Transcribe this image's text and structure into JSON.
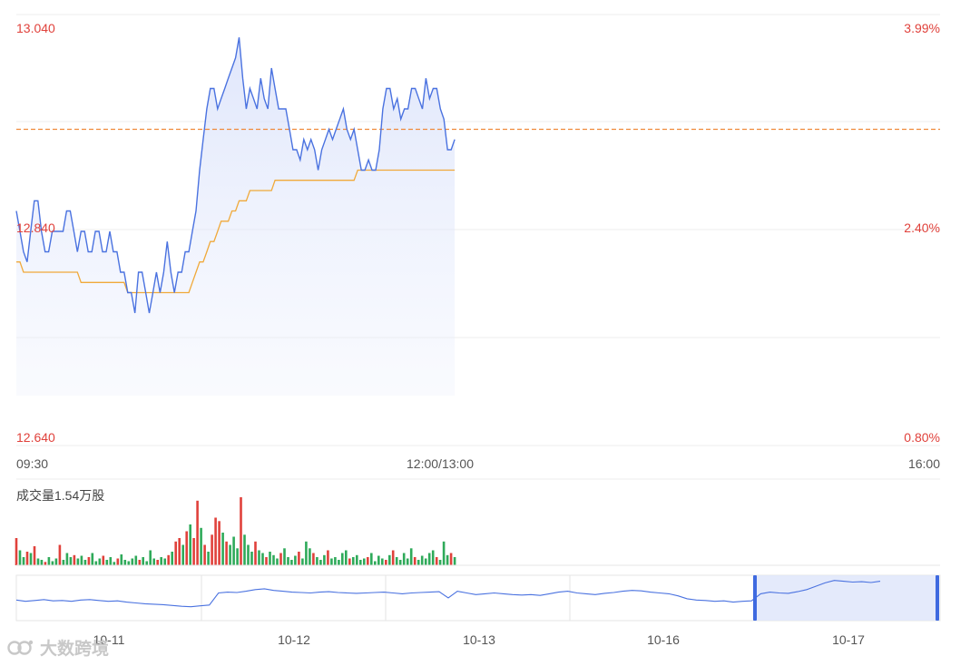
{
  "chart_data": {
    "type": "line",
    "session_axis": {
      "ticks": [
        "09:30",
        "12:00/13:00",
        "16:00"
      ]
    },
    "price_axis": {
      "ylim": [
        12.64,
        13.04
      ],
      "ticks": [
        "13.040",
        "12.840",
        "12.640"
      ]
    },
    "pct_axis": {
      "ticks": [
        "3.99%",
        "2.40%",
        "0.80%"
      ]
    },
    "reference_price": 12.94,
    "series": [
      {
        "values": [
          12.86,
          12.84,
          12.82,
          12.81,
          12.84,
          12.87,
          12.87,
          12.84,
          12.82,
          12.82,
          12.84,
          12.84,
          12.84,
          12.84,
          12.86,
          12.86,
          12.84,
          12.82,
          12.84,
          12.84,
          12.82,
          12.82,
          12.84,
          12.84,
          12.82,
          12.82,
          12.84,
          12.82,
          12.82,
          12.8,
          12.8,
          12.78,
          12.78,
          12.76,
          12.8,
          12.8,
          12.78,
          12.76,
          12.78,
          12.8,
          12.78,
          12.8,
          12.83,
          12.8,
          12.78,
          12.8,
          12.8,
          12.82,
          12.82,
          12.84,
          12.86,
          12.9,
          12.93,
          12.96,
          12.98,
          12.98,
          12.96,
          12.97,
          12.98,
          12.99,
          13.0,
          13.01,
          13.03,
          12.99,
          12.96,
          12.98,
          12.97,
          12.96,
          12.99,
          12.97,
          12.96,
          13.0,
          12.98,
          12.96,
          12.96,
          12.96,
          12.94,
          12.92,
          12.92,
          12.91,
          12.93,
          12.92,
          12.93,
          12.92,
          12.9,
          12.92,
          12.93,
          12.94,
          12.93,
          12.94,
          12.95,
          12.96,
          12.94,
          12.93,
          12.94,
          12.92,
          12.9,
          12.9,
          12.91,
          12.9,
          12.9,
          12.92,
          12.96,
          12.98,
          12.98,
          12.96,
          12.97,
          12.95,
          12.96,
          12.96,
          12.98,
          12.98,
          12.97,
          12.96,
          12.99,
          12.97,
          12.98,
          12.98,
          12.96,
          12.95,
          12.92,
          12.92,
          12.93
        ],
        "color": "#4a72e0"
      },
      {
        "values": [
          12.81,
          12.81,
          12.8,
          12.8,
          12.8,
          12.8,
          12.8,
          12.8,
          12.8,
          12.8,
          12.8,
          12.8,
          12.8,
          12.8,
          12.8,
          12.8,
          12.8,
          12.8,
          12.79,
          12.79,
          12.79,
          12.79,
          12.79,
          12.79,
          12.79,
          12.79,
          12.79,
          12.79,
          12.79,
          12.79,
          12.79,
          12.78,
          12.78,
          12.78,
          12.78,
          12.78,
          12.78,
          12.78,
          12.78,
          12.78,
          12.78,
          12.78,
          12.78,
          12.78,
          12.78,
          12.78,
          12.78,
          12.78,
          12.78,
          12.79,
          12.8,
          12.81,
          12.81,
          12.82,
          12.83,
          12.83,
          12.84,
          12.85,
          12.85,
          12.85,
          12.86,
          12.86,
          12.87,
          12.87,
          12.87,
          12.88,
          12.88,
          12.88,
          12.88,
          12.88,
          12.88,
          12.88,
          12.89,
          12.89,
          12.89,
          12.89,
          12.89,
          12.89,
          12.89,
          12.89,
          12.89,
          12.89,
          12.89,
          12.89,
          12.89,
          12.89,
          12.89,
          12.89,
          12.89,
          12.89,
          12.89,
          12.89,
          12.89,
          12.89,
          12.89,
          12.9,
          12.9,
          12.9,
          12.9,
          12.9,
          12.9,
          12.9,
          12.9,
          12.9,
          12.9,
          12.9,
          12.9,
          12.9,
          12.9,
          12.9,
          12.9,
          12.9,
          12.9,
          12.9,
          12.9,
          12.9,
          12.9,
          12.9,
          12.9,
          12.9,
          12.9,
          12.9,
          12.9
        ],
        "color": "#f0a93a"
      }
    ],
    "volume": {
      "label": "成交量1.54万股",
      "up_color": "#e0413b",
      "down_color": "#2faa5a",
      "bars": [
        {
          "v": 0.4,
          "up": true
        },
        {
          "v": 0.22,
          "up": false
        },
        {
          "v": 0.12,
          "up": false
        },
        {
          "v": 0.2,
          "up": true
        },
        {
          "v": 0.18,
          "up": false
        },
        {
          "v": 0.28,
          "up": true
        },
        {
          "v": 0.1,
          "up": false
        },
        {
          "v": 0.08,
          "up": false
        },
        {
          "v": 0.05,
          "up": true
        },
        {
          "v": 0.12,
          "up": false
        },
        {
          "v": 0.06,
          "up": false
        },
        {
          "v": 0.1,
          "up": false
        },
        {
          "v": 0.3,
          "up": true
        },
        {
          "v": 0.08,
          "up": false
        },
        {
          "v": 0.18,
          "up": false
        },
        {
          "v": 0.12,
          "up": false
        },
        {
          "v": 0.15,
          "up": true
        },
        {
          "v": 0.1,
          "up": false
        },
        {
          "v": 0.14,
          "up": false
        },
        {
          "v": 0.08,
          "up": false
        },
        {
          "v": 0.12,
          "up": true
        },
        {
          "v": 0.18,
          "up": false
        },
        {
          "v": 0.06,
          "up": false
        },
        {
          "v": 0.1,
          "up": false
        },
        {
          "v": 0.14,
          "up": true
        },
        {
          "v": 0.08,
          "up": false
        },
        {
          "v": 0.12,
          "up": false
        },
        {
          "v": 0.05,
          "up": false
        },
        {
          "v": 0.1,
          "up": true
        },
        {
          "v": 0.16,
          "up": false
        },
        {
          "v": 0.08,
          "up": false
        },
        {
          "v": 0.06,
          "up": false
        },
        {
          "v": 0.1,
          "up": false
        },
        {
          "v": 0.14,
          "up": false
        },
        {
          "v": 0.08,
          "up": true
        },
        {
          "v": 0.12,
          "up": false
        },
        {
          "v": 0.06,
          "up": false
        },
        {
          "v": 0.22,
          "up": false
        },
        {
          "v": 0.1,
          "up": false
        },
        {
          "v": 0.08,
          "up": true
        },
        {
          "v": 0.12,
          "up": false
        },
        {
          "v": 0.1,
          "up": false
        },
        {
          "v": 0.15,
          "up": true
        },
        {
          "v": 0.2,
          "up": false
        },
        {
          "v": 0.35,
          "up": true
        },
        {
          "v": 0.4,
          "up": true
        },
        {
          "v": 0.3,
          "up": false
        },
        {
          "v": 0.5,
          "up": true
        },
        {
          "v": 0.6,
          "up": false
        },
        {
          "v": 0.4,
          "up": true
        },
        {
          "v": 0.95,
          "up": true
        },
        {
          "v": 0.55,
          "up": false
        },
        {
          "v": 0.3,
          "up": true
        },
        {
          "v": 0.2,
          "up": false
        },
        {
          "v": 0.45,
          "up": true
        },
        {
          "v": 0.7,
          "up": true
        },
        {
          "v": 0.65,
          "up": true
        },
        {
          "v": 0.48,
          "up": false
        },
        {
          "v": 0.35,
          "up": true
        },
        {
          "v": 0.3,
          "up": false
        },
        {
          "v": 0.42,
          "up": false
        },
        {
          "v": 0.25,
          "up": false
        },
        {
          "v": 1.0,
          "up": true
        },
        {
          "v": 0.45,
          "up": false
        },
        {
          "v": 0.3,
          "up": false
        },
        {
          "v": 0.2,
          "up": false
        },
        {
          "v": 0.35,
          "up": true
        },
        {
          "v": 0.22,
          "up": false
        },
        {
          "v": 0.18,
          "up": false
        },
        {
          "v": 0.12,
          "up": true
        },
        {
          "v": 0.2,
          "up": false
        },
        {
          "v": 0.15,
          "up": false
        },
        {
          "v": 0.1,
          "up": false
        },
        {
          "v": 0.18,
          "up": true
        },
        {
          "v": 0.25,
          "up": false
        },
        {
          "v": 0.12,
          "up": false
        },
        {
          "v": 0.08,
          "up": false
        },
        {
          "v": 0.14,
          "up": false
        },
        {
          "v": 0.2,
          "up": true
        },
        {
          "v": 0.1,
          "up": false
        },
        {
          "v": 0.35,
          "up": false
        },
        {
          "v": 0.25,
          "up": false
        },
        {
          "v": 0.18,
          "up": true
        },
        {
          "v": 0.12,
          "up": false
        },
        {
          "v": 0.08,
          "up": false
        },
        {
          "v": 0.15,
          "up": false
        },
        {
          "v": 0.22,
          "up": true
        },
        {
          "v": 0.1,
          "up": false
        },
        {
          "v": 0.12,
          "up": false
        },
        {
          "v": 0.08,
          "up": false
        },
        {
          "v": 0.18,
          "up": false
        },
        {
          "v": 0.22,
          "up": false
        },
        {
          "v": 0.1,
          "up": true
        },
        {
          "v": 0.12,
          "up": false
        },
        {
          "v": 0.15,
          "up": false
        },
        {
          "v": 0.08,
          "up": false
        },
        {
          "v": 0.1,
          "up": false
        },
        {
          "v": 0.12,
          "up": true
        },
        {
          "v": 0.18,
          "up": false
        },
        {
          "v": 0.06,
          "up": false
        },
        {
          "v": 0.14,
          "up": false
        },
        {
          "v": 0.1,
          "up": false
        },
        {
          "v": 0.08,
          "up": true
        },
        {
          "v": 0.15,
          "up": false
        },
        {
          "v": 0.22,
          "up": true
        },
        {
          "v": 0.12,
          "up": false
        },
        {
          "v": 0.08,
          "up": false
        },
        {
          "v": 0.18,
          "up": false
        },
        {
          "v": 0.1,
          "up": false
        },
        {
          "v": 0.25,
          "up": false
        },
        {
          "v": 0.12,
          "up": true
        },
        {
          "v": 0.08,
          "up": false
        },
        {
          "v": 0.14,
          "up": false
        },
        {
          "v": 0.1,
          "up": false
        },
        {
          "v": 0.18,
          "up": false
        },
        {
          "v": 0.22,
          "up": false
        },
        {
          "v": 0.12,
          "up": true
        },
        {
          "v": 0.08,
          "up": false
        },
        {
          "v": 0.35,
          "up": false
        },
        {
          "v": 0.15,
          "up": false
        },
        {
          "v": 0.18,
          "up": true
        },
        {
          "v": 0.12,
          "up": false
        }
      ]
    },
    "navigator": {
      "dates": [
        "10-11",
        "10-12",
        "10-13",
        "10-16",
        "10-17"
      ],
      "values": [
        0.45,
        0.42,
        0.44,
        0.46,
        0.43,
        0.44,
        0.42,
        0.45,
        0.46,
        0.44,
        0.42,
        0.43,
        0.4,
        0.38,
        0.36,
        0.35,
        0.34,
        0.32,
        0.3,
        0.29,
        0.31,
        0.33,
        0.62,
        0.64,
        0.63,
        0.66,
        0.7,
        0.72,
        0.68,
        0.66,
        0.64,
        0.63,
        0.62,
        0.64,
        0.65,
        0.63,
        0.62,
        0.61,
        0.62,
        0.63,
        0.64,
        0.62,
        0.6,
        0.62,
        0.63,
        0.64,
        0.65,
        0.5,
        0.66,
        0.62,
        0.58,
        0.6,
        0.62,
        0.6,
        0.58,
        0.57,
        0.58,
        0.56,
        0.6,
        0.64,
        0.66,
        0.62,
        0.6,
        0.58,
        0.61,
        0.63,
        0.66,
        0.68,
        0.67,
        0.64,
        0.62,
        0.6,
        0.55,
        0.48,
        0.45,
        0.44,
        0.42,
        0.43,
        0.4,
        0.42,
        0.43,
        0.6,
        0.64,
        0.62,
        0.61,
        0.65,
        0.7,
        0.78,
        0.86,
        0.92,
        0.9,
        0.88,
        0.89,
        0.87,
        0.9
      ],
      "color": "#4a72e0"
    },
    "colors": {
      "price_label": "#e0413b",
      "reference_line": "#f08a3a",
      "grid": "#ececec",
      "axis_text": "#555555",
      "area_fill": "#e8edfb",
      "navigator_selection": "#dde5fa",
      "navigator_handle": "#3f6ae0"
    }
  },
  "watermark": {
    "text": "大数跨境",
    "logo_icon": "bigdata-cross-border-logo"
  }
}
